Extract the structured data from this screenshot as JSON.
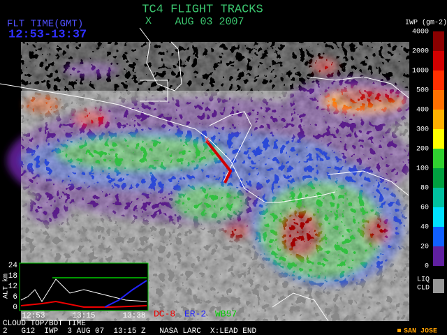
{
  "header": {
    "title": "TC4 FLIGHT TRACKS",
    "marker": "X",
    "date": "AUG 03 2007",
    "flight_time_label": "FLT TIME(GMT)",
    "flight_time": "12:53-13:37"
  },
  "color_scale": {
    "title": "IWP (gm-2)",
    "labels": [
      "4000",
      "2000",
      "1000",
      "500",
      "400",
      "300",
      "200",
      "100",
      "80",
      "60",
      "40",
      "20",
      "0"
    ],
    "liquid": "LIQ",
    "cloud": "CLD"
  },
  "inset": {
    "y_title": "ALT km",
    "yticks": [
      "24",
      "18",
      "12",
      "6",
      "0"
    ],
    "xticks": [
      "12:53",
      "13:15",
      "13:38"
    ],
    "caption": "CLOUD TOP/BOT TIME"
  },
  "legend": [
    "DC-8",
    "ER-2",
    "WB57"
  ],
  "footer": {
    "info": "2   G12  IWP  3 AUG 07  13:15 Z   NASA LARC  X:LEAD END",
    "station": "SAN JOSE"
  }
}
